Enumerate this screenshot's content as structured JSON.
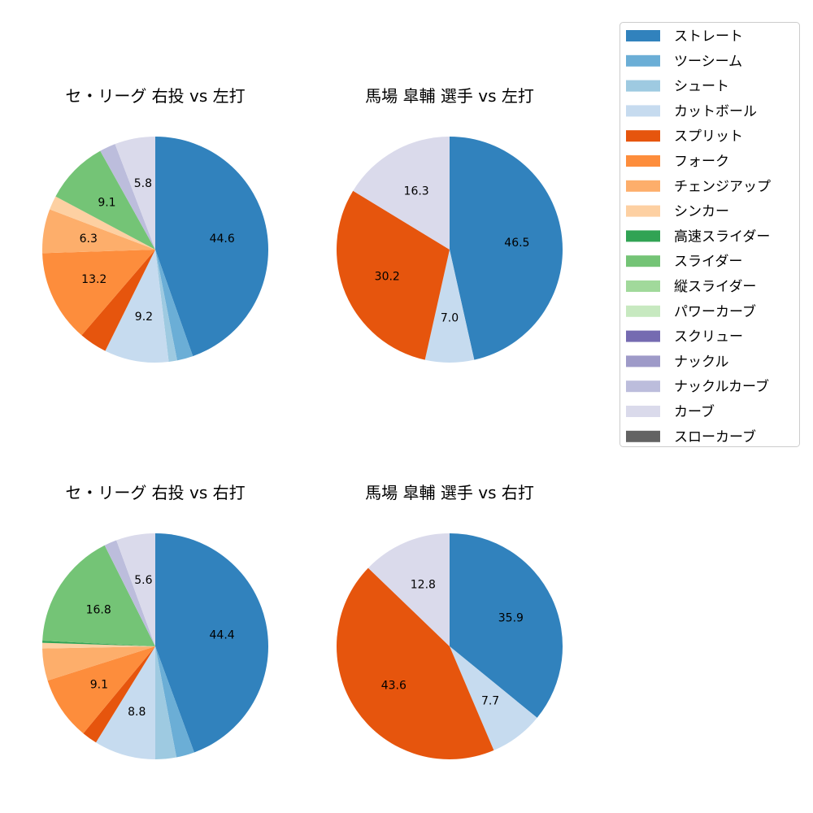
{
  "chart_data": {
    "type": "pie",
    "legend": {
      "placement": "top-right",
      "entries": [
        {
          "name": "ストレート",
          "color": "#3182bd"
        },
        {
          "name": "ツーシーム",
          "color": "#6baed6"
        },
        {
          "name": "シュート",
          "color": "#9ecae1"
        },
        {
          "name": "カットボール",
          "color": "#c6dbef"
        },
        {
          "name": "スプリット",
          "color": "#e6550d"
        },
        {
          "name": "フォーク",
          "color": "#fd8d3c"
        },
        {
          "name": "チェンジアップ",
          "color": "#fdae6b"
        },
        {
          "name": "シンカー",
          "color": "#fdd0a2"
        },
        {
          "name": "高速スライダー",
          "color": "#31a354"
        },
        {
          "name": "スライダー",
          "color": "#74c476"
        },
        {
          "name": "縦スライダー",
          "color": "#a1d99b"
        },
        {
          "name": "パワーカーブ",
          "color": "#c7e9c0"
        },
        {
          "name": "スクリュー",
          "color": "#756bb1"
        },
        {
          "name": "ナックル",
          "color": "#9e9ac8"
        },
        {
          "name": "ナックルカーブ",
          "color": "#bcbddc"
        },
        {
          "name": "カーブ",
          "color": "#dadaeb"
        },
        {
          "name": "スローカーブ",
          "color": "#636363"
        }
      ]
    },
    "charts": [
      {
        "title": "セ・リーグ 右投 vs 左打",
        "slices": [
          {
            "name": "ストレート",
            "value": 44.6
          },
          {
            "name": "ツーシーム",
            "value": 2.3
          },
          {
            "name": "シュート",
            "value": 1.2
          },
          {
            "name": "カットボール",
            "value": 9.2
          },
          {
            "name": "スプリット",
            "value": 4.0
          },
          {
            "name": "フォーク",
            "value": 13.2
          },
          {
            "name": "チェンジアップ",
            "value": 6.3
          },
          {
            "name": "シンカー",
            "value": 2.0
          },
          {
            "name": "スライダー",
            "value": 9.1
          },
          {
            "name": "ナックルカーブ",
            "value": 2.3
          },
          {
            "name": "カーブ",
            "value": 5.8
          }
        ]
      },
      {
        "title": "馬場 皐輔 選手 vs 左打",
        "slices": [
          {
            "name": "ストレート",
            "value": 46.5
          },
          {
            "name": "カットボール",
            "value": 7.0
          },
          {
            "name": "スプリット",
            "value": 30.2
          },
          {
            "name": "カーブ",
            "value": 16.3
          }
        ]
      },
      {
        "title": "セ・リーグ 右投 vs 右打",
        "slices": [
          {
            "name": "ストレート",
            "value": 44.4
          },
          {
            "name": "ツーシーム",
            "value": 2.6
          },
          {
            "name": "シュート",
            "value": 3.0
          },
          {
            "name": "カットボール",
            "value": 8.8
          },
          {
            "name": "スプリット",
            "value": 2.2
          },
          {
            "name": "フォーク",
            "value": 9.1
          },
          {
            "name": "チェンジアップ",
            "value": 4.6
          },
          {
            "name": "シンカー",
            "value": 0.8
          },
          {
            "name": "高速スライダー",
            "value": 0.3
          },
          {
            "name": "スライダー",
            "value": 16.8
          },
          {
            "name": "ナックルカーブ",
            "value": 1.8
          },
          {
            "name": "カーブ",
            "value": 5.6
          }
        ]
      },
      {
        "title": "馬場 皐輔 選手 vs 右打",
        "slices": [
          {
            "name": "ストレート",
            "value": 35.9
          },
          {
            "name": "カットボール",
            "value": 7.7
          },
          {
            "name": "スプリット",
            "value": 43.6
          },
          {
            "name": "カーブ",
            "value": 12.8
          }
        ]
      }
    ],
    "label_threshold": 5
  }
}
